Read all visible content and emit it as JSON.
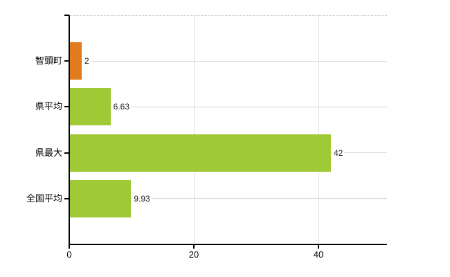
{
  "chart_data": {
    "type": "bar",
    "orientation": "horizontal",
    "title": "",
    "xlabel": "",
    "ylabel": "",
    "categories": [
      "智頭町",
      "県平均",
      "県最大",
      "全国平均"
    ],
    "values": [
      2,
      6.63,
      42,
      9.93
    ],
    "value_labels": [
      "2",
      "6.63",
      "42",
      "9.93"
    ],
    "bar_colors": [
      "#e17b20",
      "#9fca35",
      "#9fca35",
      "#9fca35"
    ],
    "xlim": [
      0,
      51
    ],
    "x_ticks": [
      0,
      20,
      40
    ],
    "x_tick_labels": [
      "0",
      "20",
      "40"
    ],
    "grid": true,
    "legend": false
  },
  "colors": {
    "bar_orange": "#e17b20",
    "bar_green": "#9fca35",
    "gridline_h": "#d5d9d2",
    "gridline_v": "#e0ddda",
    "plot_top_border": "#c9c9c9",
    "axis": "#000000",
    "category_text": "#000000",
    "value_text": "#1f1f1f"
  }
}
